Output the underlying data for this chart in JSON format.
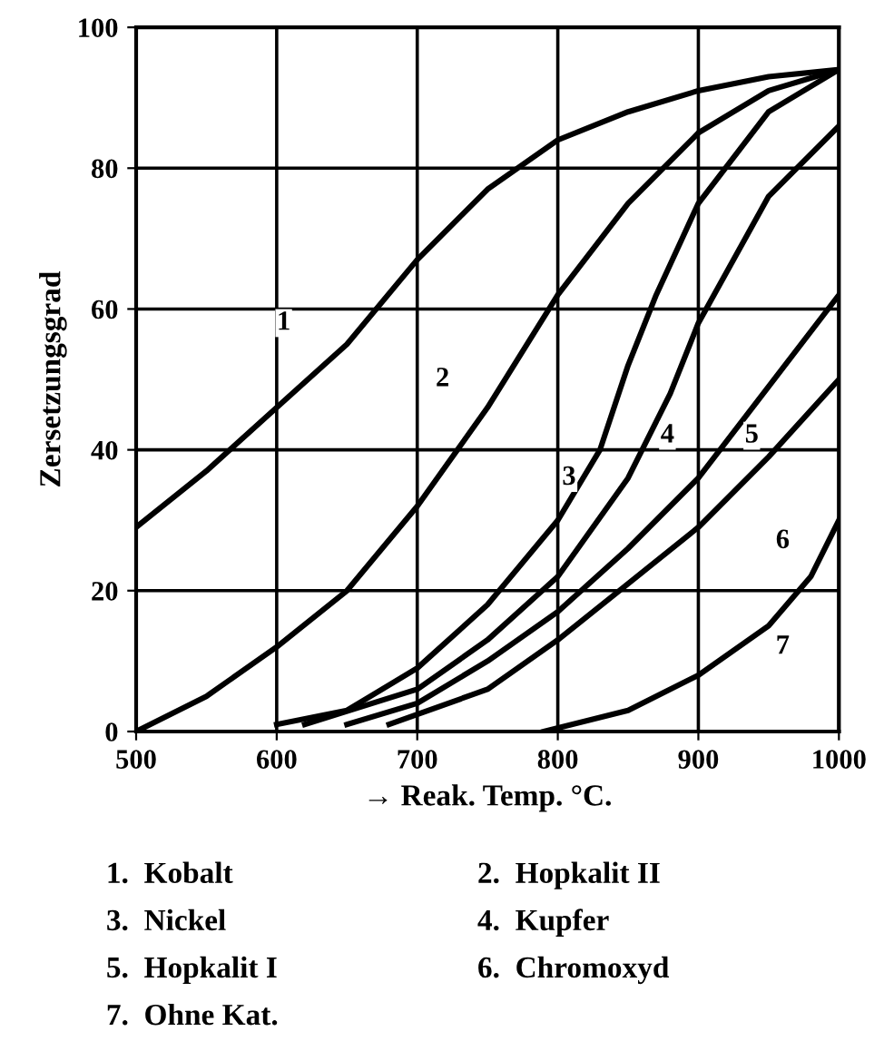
{
  "chart_data": {
    "type": "line",
    "xlabel": "→ Reak. Temp. °C.",
    "ylabel": "Zersetzungsgrad",
    "xlim": [
      500,
      1000
    ],
    "ylim": [
      0,
      100
    ],
    "xticks": [
      500,
      600,
      700,
      800,
      900,
      1000
    ],
    "yticks": [
      0,
      20,
      40,
      60,
      80,
      100
    ],
    "grid": true,
    "marker": "none",
    "line_style": "solid",
    "series": [
      {
        "color": "#000000",
        "x": [
          500,
          550,
          600,
          650,
          700,
          750,
          800,
          850,
          900,
          950,
          1000
        ],
        "values": [
          29,
          37,
          46,
          55,
          67,
          77,
          84,
          88,
          91,
          93,
          94
        ]
      },
      {
        "color": "#000000",
        "x": [
          500,
          550,
          600,
          650,
          700,
          750,
          800,
          850,
          900,
          950,
          1000
        ],
        "values": [
          0,
          5,
          12,
          20,
          32,
          46,
          62,
          75,
          85,
          91,
          94
        ]
      },
      {
        "color": "#000000",
        "x": [
          600,
          650,
          700,
          750,
          800,
          830,
          850,
          870,
          900,
          950,
          1000
        ],
        "values": [
          1,
          3,
          9,
          18,
          30,
          40,
          52,
          62,
          75,
          88,
          94
        ]
      },
      {
        "color": "#000000",
        "x": [
          620,
          700,
          750,
          800,
          850,
          880,
          900,
          950,
          1000
        ],
        "values": [
          1,
          6,
          13,
          22,
          36,
          48,
          58,
          76,
          86
        ]
      },
      {
        "color": "#000000",
        "x": [
          650,
          700,
          750,
          800,
          850,
          900,
          950,
          1000
        ],
        "values": [
          1,
          4,
          10,
          17,
          26,
          36,
          49,
          62
        ]
      },
      {
        "color": "#000000",
        "x": [
          680,
          750,
          800,
          850,
          900,
          950,
          1000
        ],
        "values": [
          1,
          6,
          13,
          21,
          29,
          39,
          50
        ]
      },
      {
        "color": "#000000",
        "x": [
          790,
          850,
          900,
          950,
          980,
          1000
        ],
        "values": [
          0,
          3,
          8,
          15,
          22,
          30
        ]
      }
    ],
    "annotations": [
      {
        "text": "1",
        "x": 605,
        "y": 58
      },
      {
        "text": "2",
        "x": 718,
        "y": 50
      },
      {
        "text": "3",
        "x": 808,
        "y": 36
      },
      {
        "text": "4",
        "x": 878,
        "y": 42
      },
      {
        "text": "5",
        "x": 938,
        "y": 42
      },
      {
        "text": "6",
        "x": 960,
        "y": 27
      },
      {
        "text": "7",
        "x": 960,
        "y": 12
      },
      "1.  Kobalt",
      "2.  Hopkalit II",
      "3.  Nickel",
      "4.  Kupfer",
      "5.  Hopkalit I",
      "6.  Chromoxyd",
      "7.  Ohne Kat."
    ]
  }
}
